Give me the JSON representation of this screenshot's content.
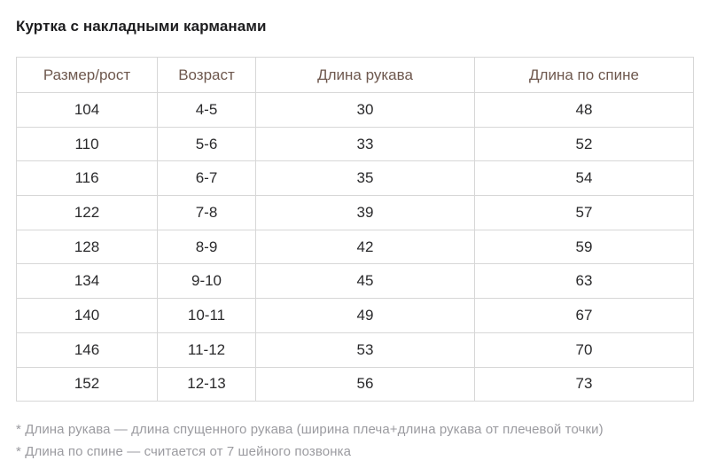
{
  "page": {
    "title": "Куртка с накладными карманами",
    "footnotes": [
      "* Длина рукава — длина спущенного рукава (ширина плеча+длина рукава от плечевой точки)",
      "* Длина по спине — считается от 7 шейного позвонка"
    ]
  },
  "chart_data": {
    "type": "table",
    "title": "Куртка с накладными карманами",
    "columns": [
      "Размер/рост",
      "Возраст",
      "Длина рукава",
      "Длина по спине"
    ],
    "rows": [
      [
        "104",
        "4-5",
        "30",
        "48"
      ],
      [
        "110",
        "5-6",
        "33",
        "52"
      ],
      [
        "116",
        "6-7",
        "35",
        "54"
      ],
      [
        "122",
        "7-8",
        "39",
        "57"
      ],
      [
        "128",
        "8-9",
        "42",
        "59"
      ],
      [
        "134",
        "9-10",
        "45",
        "63"
      ],
      [
        "140",
        "10-11",
        "49",
        "67"
      ],
      [
        "146",
        "11-12",
        "53",
        "70"
      ],
      [
        "152",
        "12-13",
        "56",
        "73"
      ]
    ]
  },
  "colors": {
    "header_text": "#6e584e",
    "cell_text": "#2a2a2c",
    "title_text": "#1d1d1f",
    "border": "#d7d7d7",
    "footnote_text": "#9b9ba0",
    "background": "#ffffff"
  }
}
